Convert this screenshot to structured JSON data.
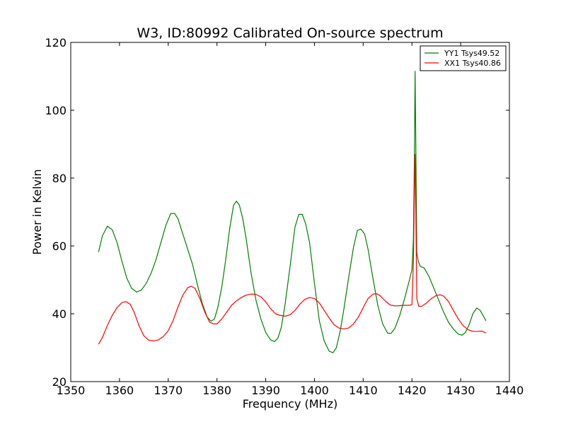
{
  "chart_data": {
    "type": "line",
    "title": "W3, ID:80992 Calibrated On-source spectrum",
    "xlabel": "Frequency (MHz)",
    "ylabel": "Power in Kelvin",
    "xlim": [
      1350,
      1440
    ],
    "ylim": [
      20,
      120
    ],
    "xticks": [
      1350,
      1360,
      1370,
      1380,
      1390,
      1400,
      1410,
      1420,
      1430,
      1440
    ],
    "yticks": [
      20,
      40,
      60,
      80,
      100,
      120
    ],
    "grid": false,
    "legend_position": "top-right",
    "series": [
      {
        "name": "YY1 Tsys49.52",
        "color": "#008000",
        "points": [
          [
            1355.7,
            58.2
          ],
          [
            1356.5,
            63.0
          ],
          [
            1357.5,
            65.8
          ],
          [
            1358.5,
            64.8
          ],
          [
            1359.5,
            61.0
          ],
          [
            1360.5,
            55.5
          ],
          [
            1361.5,
            50.5
          ],
          [
            1362.5,
            47.5
          ],
          [
            1363.5,
            46.4
          ],
          [
            1364.5,
            47.0
          ],
          [
            1365.5,
            49.0
          ],
          [
            1366.5,
            52.0
          ],
          [
            1367.5,
            56.0
          ],
          [
            1368.5,
            61.0
          ],
          [
            1369.5,
            66.0
          ],
          [
            1370.5,
            69.5
          ],
          [
            1371.3,
            69.6
          ],
          [
            1372.0,
            68.0
          ],
          [
            1373.0,
            63.5
          ],
          [
            1374.0,
            59.0
          ],
          [
            1375.0,
            54.5
          ],
          [
            1376.0,
            48.5
          ],
          [
            1377.0,
            43.0
          ],
          [
            1378.0,
            39.0
          ],
          [
            1378.8,
            37.8
          ],
          [
            1379.5,
            38.5
          ],
          [
            1380.2,
            42.0
          ],
          [
            1381.0,
            48.0
          ],
          [
            1381.8,
            56.0
          ],
          [
            1382.6,
            65.0
          ],
          [
            1383.4,
            72.0
          ],
          [
            1384.0,
            73.2
          ],
          [
            1384.6,
            72.0
          ],
          [
            1385.3,
            68.0
          ],
          [
            1386.0,
            62.0
          ],
          [
            1387.0,
            52.0
          ],
          [
            1388.0,
            44.0
          ],
          [
            1389.0,
            38.5
          ],
          [
            1390.0,
            34.5
          ],
          [
            1391.0,
            32.3
          ],
          [
            1391.8,
            31.8
          ],
          [
            1392.5,
            32.8
          ],
          [
            1393.2,
            36.0
          ],
          [
            1394.0,
            43.0
          ],
          [
            1395.0,
            54.0
          ],
          [
            1396.0,
            65.5
          ],
          [
            1396.8,
            69.3
          ],
          [
            1397.5,
            69.3
          ],
          [
            1398.2,
            66.5
          ],
          [
            1399.0,
            61.0
          ],
          [
            1400.0,
            49.0
          ],
          [
            1401.0,
            38.0
          ],
          [
            1402.0,
            32.0
          ],
          [
            1403.0,
            29.0
          ],
          [
            1403.8,
            28.5
          ],
          [
            1404.5,
            30.0
          ],
          [
            1405.3,
            35.0
          ],
          [
            1406.0,
            41.0
          ],
          [
            1407.0,
            50.5
          ],
          [
            1408.0,
            59.5
          ],
          [
            1408.8,
            64.5
          ],
          [
            1409.5,
            65.0
          ],
          [
            1410.3,
            63.5
          ],
          [
            1411.0,
            59.0
          ],
          [
            1412.0,
            50.5
          ],
          [
            1413.0,
            42.5
          ],
          [
            1414.0,
            37.0
          ],
          [
            1415.0,
            34.3
          ],
          [
            1415.7,
            34.2
          ],
          [
            1416.5,
            35.7
          ],
          [
            1417.5,
            39.5
          ],
          [
            1418.5,
            44.5
          ],
          [
            1419.5,
            50.0
          ],
          [
            1420.0,
            53.0
          ],
          [
            1420.3,
            62.0
          ],
          [
            1420.5,
            85.0
          ],
          [
            1420.65,
            111.5
          ],
          [
            1420.8,
            90.0
          ],
          [
            1421.0,
            58.0
          ],
          [
            1421.3,
            55.5
          ],
          [
            1421.7,
            54.0
          ],
          [
            1422.5,
            53.5
          ],
          [
            1423.5,
            51.0
          ],
          [
            1424.5,
            47.5
          ],
          [
            1425.5,
            44.0
          ],
          [
            1426.5,
            40.5
          ],
          [
            1427.5,
            37.5
          ],
          [
            1428.5,
            35.5
          ],
          [
            1429.5,
            34.0
          ],
          [
            1430.3,
            33.7
          ],
          [
            1431.0,
            34.5
          ],
          [
            1431.8,
            37.0
          ],
          [
            1432.5,
            40.0
          ],
          [
            1433.3,
            41.7
          ],
          [
            1434.0,
            41.0
          ],
          [
            1434.6,
            39.5
          ],
          [
            1435.2,
            37.9
          ]
        ]
      },
      {
        "name": "XX1 Tsys40.86",
        "color": "#ff0000",
        "points": [
          [
            1355.7,
            31.0
          ],
          [
            1356.5,
            33.0
          ],
          [
            1357.5,
            36.5
          ],
          [
            1358.5,
            39.5
          ],
          [
            1359.5,
            41.8
          ],
          [
            1360.5,
            43.3
          ],
          [
            1361.3,
            43.6
          ],
          [
            1362.2,
            42.8
          ],
          [
            1363.0,
            40.5
          ],
          [
            1364.0,
            36.5
          ],
          [
            1365.0,
            33.5
          ],
          [
            1366.0,
            32.2
          ],
          [
            1367.0,
            32.0
          ],
          [
            1368.0,
            32.3
          ],
          [
            1369.0,
            33.3
          ],
          [
            1370.0,
            35.0
          ],
          [
            1371.0,
            38.0
          ],
          [
            1372.0,
            42.0
          ],
          [
            1373.0,
            45.5
          ],
          [
            1374.0,
            47.7
          ],
          [
            1374.7,
            48.1
          ],
          [
            1375.5,
            47.5
          ],
          [
            1376.5,
            44.5
          ],
          [
            1377.5,
            40.5
          ],
          [
            1378.5,
            37.5
          ],
          [
            1379.3,
            37.0
          ],
          [
            1380.0,
            37.0
          ],
          [
            1381.0,
            38.5
          ],
          [
            1382.0,
            40.5
          ],
          [
            1383.0,
            42.5
          ],
          [
            1384.0,
            43.8
          ],
          [
            1385.0,
            44.8
          ],
          [
            1386.0,
            45.5
          ],
          [
            1387.0,
            45.8
          ],
          [
            1388.0,
            45.7
          ],
          [
            1389.0,
            45.0
          ],
          [
            1390.0,
            43.5
          ],
          [
            1391.0,
            41.5
          ],
          [
            1392.0,
            40.0
          ],
          [
            1393.0,
            39.5
          ],
          [
            1394.0,
            39.3
          ],
          [
            1395.0,
            39.7
          ],
          [
            1396.0,
            41.0
          ],
          [
            1397.0,
            42.8
          ],
          [
            1398.0,
            44.2
          ],
          [
            1399.0,
            44.8
          ],
          [
            1400.0,
            44.5
          ],
          [
            1401.0,
            43.2
          ],
          [
            1402.0,
            41.0
          ],
          [
            1403.0,
            38.8
          ],
          [
            1404.0,
            36.8
          ],
          [
            1405.0,
            35.8
          ],
          [
            1406.0,
            35.5
          ],
          [
            1407.0,
            35.8
          ],
          [
            1408.0,
            37.0
          ],
          [
            1409.0,
            39.0
          ],
          [
            1410.0,
            41.8
          ],
          [
            1411.0,
            44.5
          ],
          [
            1412.0,
            45.8
          ],
          [
            1412.8,
            45.9
          ],
          [
            1413.5,
            45.3
          ],
          [
            1414.5,
            43.8
          ],
          [
            1415.5,
            42.6
          ],
          [
            1416.5,
            42.3
          ],
          [
            1417.5,
            42.4
          ],
          [
            1418.5,
            42.5
          ],
          [
            1419.5,
            42.5
          ],
          [
            1420.0,
            42.7
          ],
          [
            1420.3,
            55.0
          ],
          [
            1420.5,
            75.0
          ],
          [
            1420.65,
            87.0
          ],
          [
            1420.8,
            70.0
          ],
          [
            1421.0,
            44.5
          ],
          [
            1421.4,
            42.2
          ],
          [
            1422.0,
            42.2
          ],
          [
            1423.0,
            43.2
          ],
          [
            1424.0,
            44.5
          ],
          [
            1425.0,
            45.4
          ],
          [
            1425.8,
            45.6
          ],
          [
            1426.5,
            45.2
          ],
          [
            1427.5,
            43.6
          ],
          [
            1428.5,
            41.0
          ],
          [
            1429.5,
            38.5
          ],
          [
            1430.5,
            36.5
          ],
          [
            1431.5,
            35.3
          ],
          [
            1432.5,
            34.8
          ],
          [
            1433.5,
            34.8
          ],
          [
            1434.3,
            34.9
          ],
          [
            1435.2,
            34.3
          ]
        ]
      }
    ]
  }
}
